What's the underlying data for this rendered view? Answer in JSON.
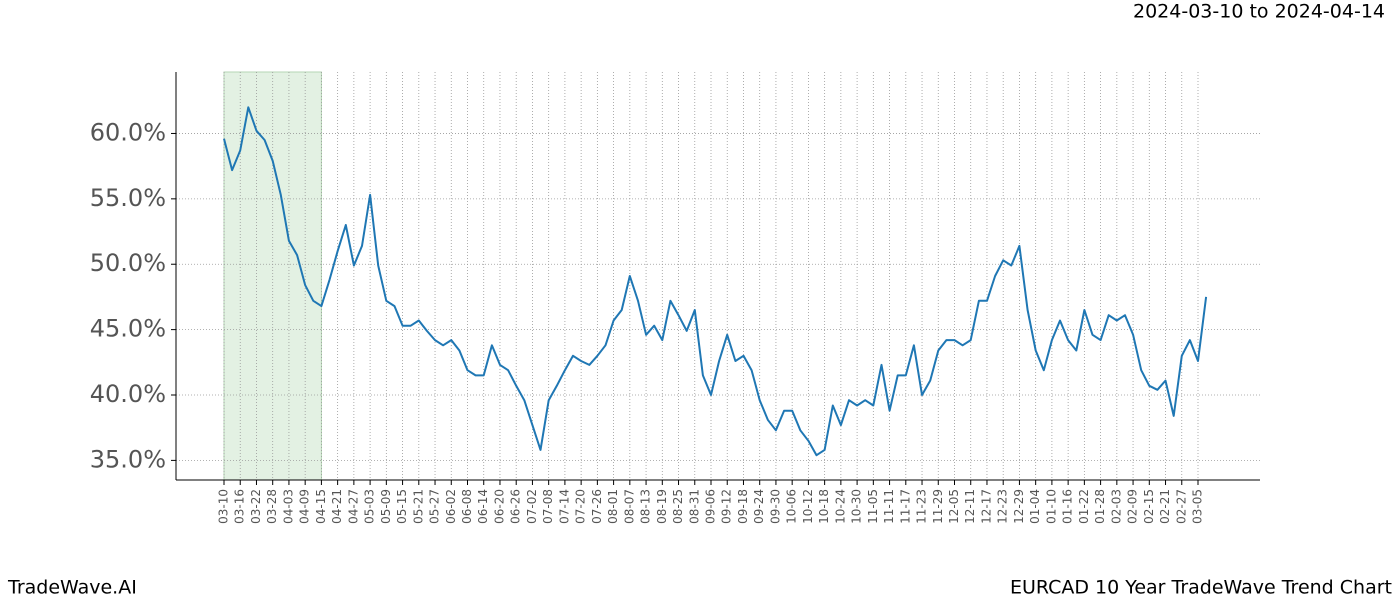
{
  "chart_data": {
    "type": "line",
    "title": "EURCAD 10 Year TradeWave Trend Chart",
    "subtitle": "2024-03-10 to 2024-04-14",
    "brand": "TradeWave.AI",
    "categories": [
      "03-10",
      null,
      "03-16",
      null,
      "03-22",
      null,
      "03-28",
      null,
      "04-03",
      null,
      "04-09",
      null,
      "04-15",
      null,
      "04-21",
      null,
      "04-27",
      null,
      "05-03",
      null,
      "05-09",
      null,
      "05-15",
      null,
      "05-21",
      null,
      "05-27",
      null,
      "06-02",
      null,
      "06-08",
      null,
      "06-14",
      null,
      "06-20",
      null,
      "06-26",
      null,
      "07-02",
      null,
      "07-08",
      null,
      "07-14",
      null,
      "07-20",
      null,
      "07-26",
      null,
      "08-01",
      null,
      "08-07",
      null,
      "08-13",
      null,
      "08-19",
      null,
      "08-25",
      null,
      "08-31",
      null,
      "09-06",
      null,
      "09-12",
      null,
      "09-18",
      null,
      "09-24",
      null,
      "09-30",
      null,
      "10-06",
      null,
      "10-12",
      null,
      "10-18",
      null,
      "10-24",
      null,
      "10-30",
      null,
      "11-05",
      null,
      "11-11",
      null,
      "11-17",
      null,
      "11-23",
      null,
      "11-29",
      null,
      "12-05",
      null,
      "12-11",
      null,
      "12-17",
      null,
      "12-23",
      null,
      "12-29",
      null,
      "01-04",
      null,
      "01-10",
      null,
      "01-16",
      null,
      "01-22",
      null,
      "01-28",
      null,
      "02-03",
      null,
      "02-09",
      null,
      "02-15",
      null,
      "02-21",
      null,
      "02-27",
      null,
      "03-05",
      null
    ],
    "series": [
      {
        "name": "EURCAD",
        "color": "#1f77b4",
        "values": [
          59.6,
          57.2,
          58.7,
          62.0,
          60.2,
          59.5,
          57.9,
          55.3,
          51.8,
          50.7,
          48.4,
          47.2,
          46.8,
          48.8,
          51.0,
          53.0,
          49.9,
          51.4,
          55.3,
          49.9,
          47.2,
          46.8,
          45.3,
          45.3,
          45.7,
          44.9,
          44.2,
          43.8,
          44.2,
          43.4,
          41.9,
          41.5,
          41.5,
          43.8,
          42.3,
          41.9,
          40.7,
          39.6,
          37.7,
          35.8,
          39.6,
          40.7,
          41.9,
          43.0,
          42.6,
          42.3,
          43.0,
          43.8,
          45.7,
          46.5,
          49.1,
          47.2,
          44.6,
          45.3,
          44.2,
          47.2,
          46.1,
          44.9,
          46.5,
          41.5,
          40.0,
          42.6,
          44.6,
          42.6,
          43.0,
          41.9,
          39.6,
          38.1,
          37.3,
          38.8,
          38.8,
          37.3,
          36.5,
          35.4,
          35.8,
          39.2,
          37.7,
          39.6,
          39.2,
          39.6,
          39.2,
          42.3,
          38.8,
          41.5,
          41.5,
          43.8,
          40.0,
          41.1,
          43.4,
          44.2,
          44.2,
          43.8,
          44.2,
          47.2,
          47.2,
          49.1,
          50.3,
          49.9,
          51.4,
          46.5,
          43.4,
          41.9,
          44.2,
          45.7,
          44.2,
          43.4,
          46.5,
          44.6,
          44.2,
          46.1,
          45.7,
          46.1,
          44.6,
          41.9,
          40.7,
          40.4,
          41.1,
          38.4,
          43.0,
          44.2,
          42.6,
          47.5
        ]
      }
    ],
    "ylim": [
      33.5,
      64.7
    ],
    "yticks": [
      {
        "value": 35,
        "label": "35.0%"
      },
      {
        "value": 40,
        "label": "40.0%"
      },
      {
        "value": 45,
        "label": "45.0%"
      },
      {
        "value": 50,
        "label": "50.0%"
      },
      {
        "value": 55,
        "label": "55.0%"
      },
      {
        "value": 60,
        "label": "60.0%"
      }
    ],
    "grid": true,
    "highlight": {
      "start": "03-10",
      "end": "04-15",
      "color": "#e3f1e3"
    }
  }
}
